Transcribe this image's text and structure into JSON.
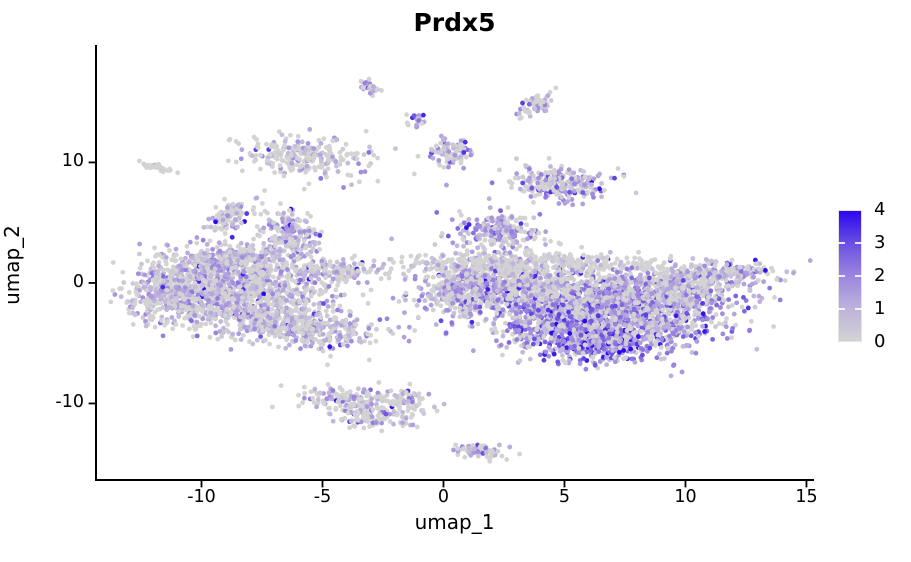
{
  "chart_data": {
    "type": "scatter",
    "title": "Prdx5",
    "xlabel": "umap_1",
    "ylabel": "umap_2",
    "xlim": [
      -14.36,
      15.27
    ],
    "ylim": [
      -16.35,
      19.66
    ],
    "x_ticks": [
      "-10",
      "-5",
      "0",
      "5",
      "10",
      "15"
    ],
    "x_tick_values": [
      -10,
      -5,
      0,
      5,
      10,
      15
    ],
    "y_ticks": [
      "10",
      "0",
      "-10"
    ],
    "y_tick_values": [
      10,
      0,
      -10
    ],
    "grid": false,
    "legend_position": "right",
    "background_color": "#ffffff",
    "axis_color": "#000000",
    "text_color": "#000000",
    "point_radius_px": 2.4,
    "random_seed": 42,
    "colorbar": {
      "tick_labels": [
        "4",
        "3",
        "2",
        "1",
        "0"
      ],
      "tick_values": [
        4,
        3,
        2,
        1,
        0
      ],
      "value_range": [
        0,
        4
      ],
      "low_color": "#d3d3d3",
      "high_color": "#2a07f0",
      "gradient_stops": [
        "#d3d3d3",
        "#beb2dc",
        "#9c85de",
        "#6b4fe2",
        "#2a07f0"
      ],
      "notch_values": [
        1,
        2,
        3
      ]
    },
    "clusters": [
      {
        "name": "left-blob-core",
        "cx": -8.6,
        "cy": -0.8,
        "sx": 1.9,
        "sy": 1.5,
        "rot": 0,
        "n": 1100,
        "frac_zero": 0.42,
        "mean_expr": 1.1
      },
      {
        "name": "left-blob-west",
        "cx": -11.4,
        "cy": -0.6,
        "sx": 0.9,
        "sy": 1.2,
        "rot": 0,
        "n": 300,
        "frac_zero": 0.45,
        "mean_expr": 1.0
      },
      {
        "name": "left-blob-south-tail",
        "cx": -6.0,
        "cy": -3.6,
        "sx": 1.7,
        "sy": 0.85,
        "rot": -12,
        "n": 450,
        "frac_zero": 0.5,
        "mean_expr": 1.0
      },
      {
        "name": "left-blob-north-arm",
        "cx": -6.3,
        "cy": 4.2,
        "sx": 0.55,
        "sy": 0.95,
        "rot": 15,
        "n": 170,
        "frac_zero": 0.42,
        "mean_expr": 1.2
      },
      {
        "name": "left-blob-east-arm",
        "cx": -4.2,
        "cy": 1.0,
        "sx": 1.05,
        "sy": 0.4,
        "rot": 0,
        "n": 140,
        "frac_zero": 0.5,
        "mean_expr": 1.0
      },
      {
        "name": "left-blob-nw-shoulder",
        "cx": -9.3,
        "cy": 1.8,
        "sx": 1.2,
        "sy": 0.7,
        "rot": 0,
        "n": 220,
        "frac_zero": 0.45,
        "mean_expr": 1.1
      },
      {
        "name": "left-blob-north-mid",
        "cx": -7.3,
        "cy": 2.2,
        "sx": 0.8,
        "sy": 0.6,
        "rot": 0,
        "n": 120,
        "frac_zero": 0.45,
        "mean_expr": 1.1
      },
      {
        "name": "right-blob-core",
        "cx": 6.3,
        "cy": -2.3,
        "sx": 2.4,
        "sy": 1.5,
        "rot": -8,
        "n": 1600,
        "frac_zero": 0.3,
        "mean_expr": 1.6
      },
      {
        "name": "right-blob-south-dense",
        "cx": 5.9,
        "cy": -4.6,
        "sx": 1.5,
        "sy": 0.85,
        "rot": -8,
        "n": 550,
        "frac_zero": 0.15,
        "mean_expr": 2.2
      },
      {
        "name": "right-blob-north-stripe",
        "cx": 3.3,
        "cy": 1.6,
        "sx": 2.6,
        "sy": 0.45,
        "rot": 0,
        "n": 400,
        "frac_zero": 0.75,
        "mean_expr": 0.8
      },
      {
        "name": "right-blob-mid-grey",
        "cx": 4.0,
        "cy": 0.2,
        "sx": 1.5,
        "sy": 0.75,
        "rot": 0,
        "n": 300,
        "frac_zero": 0.55,
        "mean_expr": 1.0
      },
      {
        "name": "right-blob-west-lobe",
        "cx": 1.3,
        "cy": -0.6,
        "sx": 1.15,
        "sy": 1.25,
        "rot": 0,
        "n": 450,
        "frac_zero": 0.4,
        "mean_expr": 1.4
      },
      {
        "name": "right-blob-nw-arm",
        "cx": 2.3,
        "cy": 4.4,
        "sx": 0.85,
        "sy": 0.75,
        "rot": -20,
        "n": 200,
        "frac_zero": 0.35,
        "mean_expr": 1.4
      },
      {
        "name": "right-blob-east-arm",
        "cx": 10.9,
        "cy": 0.55,
        "sx": 1.5,
        "sy": 0.6,
        "rot": 8,
        "n": 320,
        "frac_zero": 0.45,
        "mean_expr": 1.1
      },
      {
        "name": "right-blob-east-lobe",
        "cx": 8.9,
        "cy": -1.3,
        "sx": 1.5,
        "sy": 1.15,
        "rot": 0,
        "n": 450,
        "frac_zero": 0.35,
        "mean_expr": 1.4
      },
      {
        "name": "top-left-cluster",
        "cx": -5.7,
        "cy": 10.5,
        "sx": 1.3,
        "sy": 0.8,
        "rot": -10,
        "n": 260,
        "frac_zero": 0.68,
        "mean_expr": 1.1
      },
      {
        "name": "top-mid-cluster",
        "cx": 0.3,
        "cy": 10.9,
        "sx": 0.45,
        "sy": 0.6,
        "rot": 0,
        "n": 90,
        "frac_zero": 0.5,
        "mean_expr": 1.3
      },
      {
        "name": "top-right-cluster",
        "cx": 4.7,
        "cy": 8.3,
        "sx": 1.05,
        "sy": 0.7,
        "rot": -10,
        "n": 240,
        "frac_zero": 0.4,
        "mean_expr": 1.4
      },
      {
        "name": "tiny-north-pair",
        "cx": 3.8,
        "cy": 14.8,
        "sx": 0.35,
        "sy": 0.6,
        "rot": -25,
        "n": 55,
        "frac_zero": 0.55,
        "mean_expr": 1.2
      },
      {
        "name": "tiny-north-elongated",
        "cx": -3.0,
        "cy": 16.2,
        "sx": 0.42,
        "sy": 0.15,
        "rot": -60,
        "n": 28,
        "frac_zero": 0.55,
        "mean_expr": 1.5
      },
      {
        "name": "tiny-north-dot",
        "cx": -1.15,
        "cy": 13.4,
        "sx": 0.22,
        "sy": 0.3,
        "rot": 0,
        "n": 20,
        "frac_zero": 0.5,
        "mean_expr": 1.4
      },
      {
        "name": "tiny-west-grey",
        "cx": -11.9,
        "cy": 9.65,
        "sx": 0.38,
        "sy": 0.12,
        "rot": -25,
        "n": 30,
        "frac_zero": 0.92,
        "mean_expr": 0.6
      },
      {
        "name": "small-west-satellite",
        "cx": -8.8,
        "cy": 5.6,
        "sx": 0.4,
        "sy": 0.8,
        "rot": -20,
        "n": 90,
        "frac_zero": 0.5,
        "mean_expr": 1.2
      },
      {
        "name": "bottom-cluster-a",
        "cx": -3.9,
        "cy": -9.7,
        "sx": 0.95,
        "sy": 0.5,
        "rot": -12,
        "n": 140,
        "frac_zero": 0.62,
        "mean_expr": 1.2
      },
      {
        "name": "bottom-cluster-b",
        "cx": -1.7,
        "cy": -9.9,
        "sx": 0.6,
        "sy": 0.55,
        "rot": 0,
        "n": 90,
        "frac_zero": 0.62,
        "mean_expr": 1.2
      },
      {
        "name": "bottom-cluster-c",
        "cx": -2.9,
        "cy": -11.2,
        "sx": 0.85,
        "sy": 0.45,
        "rot": -15,
        "n": 100,
        "frac_zero": 0.62,
        "mean_expr": 1.2
      },
      {
        "name": "bottom-right-small",
        "cx": 1.5,
        "cy": -13.9,
        "sx": 0.55,
        "sy": 0.3,
        "rot": -25,
        "n": 75,
        "frac_zero": 0.55,
        "mean_expr": 1.3
      },
      {
        "name": "sparse-mid",
        "cx": 2.1,
        "cy": 3.0,
        "sx": 1.3,
        "sy": 0.9,
        "rot": 0,
        "n": 28,
        "frac_zero": 0.5,
        "mean_expr": 1.0
      }
    ]
  }
}
